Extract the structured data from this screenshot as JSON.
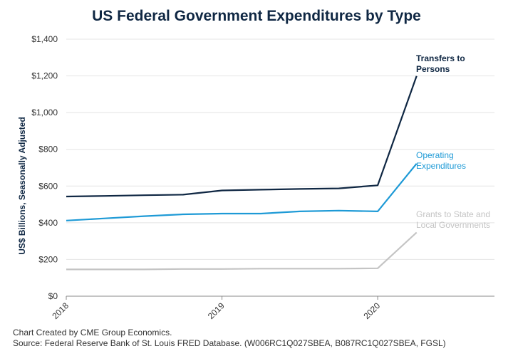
{
  "chart_data": {
    "type": "line",
    "title": "US Federal Government Expenditures by Type",
    "ylabel": "US$ Billions, Seasonally Adjusted",
    "xlabel": "",
    "ylim": [
      0,
      1400
    ],
    "xlim": [
      2018.0,
      2020.75
    ],
    "grid": true,
    "y_ticks": [
      0,
      200,
      400,
      600,
      800,
      1000,
      1200,
      1400
    ],
    "y_tick_labels": [
      "$0",
      "$200",
      "$400",
      "$600",
      "$800",
      "$1,000",
      "$1,200",
      "$1,400"
    ],
    "x_ticks": [
      2018,
      2019,
      2020
    ],
    "x_tick_labels": [
      "2018",
      "2019",
      "2020"
    ],
    "series": [
      {
        "name": "Transfers to Persons",
        "label_lines": [
          "Transfers to",
          "Persons"
        ],
        "color": "#0f2743",
        "x": [
          2018.0,
          2018.25,
          2018.5,
          2018.75,
          2019.0,
          2019.25,
          2019.5,
          2019.75,
          2020.0,
          2020.25
        ],
        "values": [
          543,
          546,
          550,
          553,
          576,
          580,
          584,
          587,
          604,
          1199
        ]
      },
      {
        "name": "Operating Expenditures",
        "label_lines": [
          "Operating",
          "Expenditures"
        ],
        "color": "#1e9ad6",
        "x": [
          2018.0,
          2018.25,
          2018.5,
          2018.75,
          2019.0,
          2019.25,
          2019.5,
          2019.75,
          2020.0,
          2020.25
        ],
        "values": [
          412,
          424,
          436,
          446,
          450,
          450,
          462,
          466,
          462,
          722
        ]
      },
      {
        "name": "Grants to State and Local Governments",
        "label_lines": [
          "Grants to State and",
          "Local Governments"
        ],
        "color": "#c4c4c4",
        "x": [
          2018.0,
          2018.25,
          2018.5,
          2018.75,
          2019.0,
          2019.25,
          2019.5,
          2019.75,
          2020.0,
          2020.25
        ],
        "values": [
          146,
          146,
          146,
          148,
          148,
          150,
          150,
          150,
          152,
          347
        ]
      }
    ]
  },
  "footer": {
    "credit": "Chart Created by CME Group Economics.",
    "source": "Source:  Federal Reserve Bank of St. Louis FRED Database. (W006RC1Q027SBEA, B087RC1Q027SBEA, FGSL)"
  }
}
